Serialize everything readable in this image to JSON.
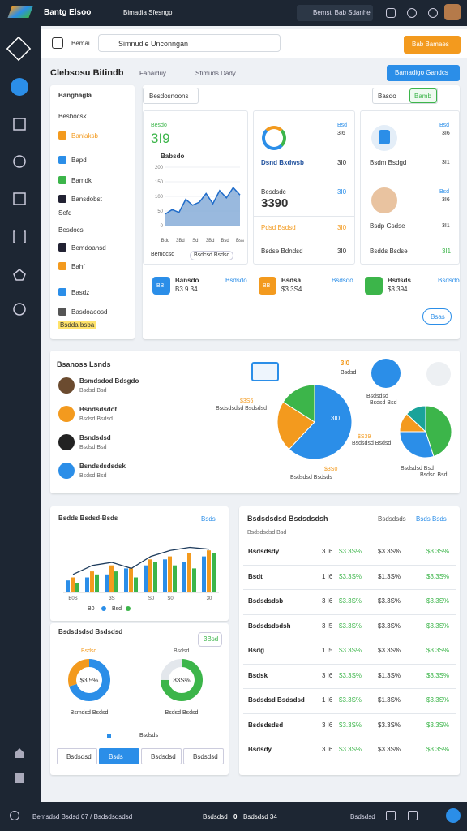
{
  "topbar": {
    "brand": "Bantg Elsoo",
    "tab": "Bimadia Sfesngp",
    "search": "Bemsti Bab Sdanhe"
  },
  "toolbar": {
    "home": "Bemai",
    "search": "Simnudie Unconngan",
    "button": "Bab Bamaes"
  },
  "header": {
    "title": "Clebsosu Bitindb",
    "tabs": [
      "Fanaiduy",
      "Sfimuds Dady"
    ],
    "button": "Bamadigo Gandcs"
  },
  "menu": {
    "title": "Banghagla",
    "items": [
      "Besbocsk",
      "Banlaksb",
      "Bapd",
      "Bamdk",
      "Bansdobst",
      "Sefd",
      "Besdocs",
      "Bemdoahsd",
      "Bahf",
      "Basdz",
      "Basdoaoosd",
      "Bsdda bsba"
    ]
  },
  "overview": {
    "button": "Besdosnoons",
    "toggle": [
      "Basdo",
      "Bamb"
    ],
    "card1": {
      "value": "3I9",
      "sub": "Besdo",
      "label": "Babsdo",
      "footer": "Bemdcsd",
      "legend": "Bsdcsd Bsdsd"
    },
    "area_chart": {
      "values": [
        40,
        55,
        45,
        90,
        70,
        80,
        110,
        75,
        120,
        95,
        130,
        105
      ],
      "ylim": [
        0,
        200
      ],
      "yticks": [
        0,
        50,
        100,
        150,
        200
      ],
      "xlabels": [
        "Bdd",
        "3Bd",
        "Sd",
        "3Bd",
        "Bsd",
        "Bss"
      ]
    },
    "card2": {
      "tag": "Bsd",
      "tag_value": "3I6",
      "rows": [
        {
          "label": "Dsnd Bxdwsb",
          "value": "3I0"
        },
        {
          "label": "Besdsdc",
          "value": "3I0"
        },
        {
          "label": "Pdsd Bsdsd",
          "value": "3I0"
        },
        {
          "label": "Bsdse Bdndsd",
          "value": "3I0"
        }
      ],
      "big": "3390"
    },
    "card3": {
      "rows": [
        {
          "label": "Bsd",
          "value": "3I6"
        },
        {
          "label": "Bsdm Bsdgd",
          "value": "3I1"
        },
        {
          "label": "Bsd",
          "value": "3I6"
        },
        {
          "label": "Bsdp Gsdse",
          "value": "3I1"
        },
        {
          "label": "Bsdds Bsdse",
          "value": "3I1"
        }
      ]
    },
    "stats": [
      {
        "icon": "BB",
        "label": "Bansdo",
        "value": "B3.9 34",
        "link": "Bsdsdo"
      },
      {
        "icon": "BB",
        "label": "Bsdsa",
        "value": "$3.3S4",
        "link": "Bsdsdo"
      },
      {
        "icon": "",
        "label": "Bsdsds",
        "value": "$3.394",
        "link": "Bsdsdo"
      }
    ],
    "more": "Bsas"
  },
  "trends": {
    "title": "Bsanoss Lsnds",
    "people": [
      {
        "name": "Bsmdsdod Bdsgdo",
        "sub": "Bsdsd Bsd"
      },
      {
        "name": "Bsndsdsdot",
        "sub": "Bsdsd Bsdsd"
      },
      {
        "name": "Bsndsdsd",
        "sub": "Bsdsd Bsd"
      },
      {
        "name": "Bsndsdsdsdsk",
        "sub": "Bsdsd Bsd"
      }
    ],
    "badge": "3I0",
    "badge_sub": "Bsdsd",
    "pie1": {
      "values": [
        62,
        22,
        16
      ],
      "colors": [
        "#2b8ee8",
        "#f39a1e",
        "#3cb54a"
      ],
      "label": "3I0",
      "annotations": [
        "$3S6",
        "Bsdsdsdsd Bsdsdsd",
        "$S39",
        "Bsdsdsd Bsdsd",
        "$3S0",
        "Bsdsdsd Bsdsds"
      ]
    },
    "pie2": {
      "values": [
        45,
        30,
        12,
        13
      ],
      "colors": [
        "#3cb54a",
        "#2b8ee8",
        "#f39a1e",
        "#1aa39a"
      ],
      "annotations": [
        "Bsdsdsd",
        "Bsdsd Bsd",
        "Bsdsdsd Bsd",
        "Bsdsd Bsd"
      ]
    }
  },
  "bars": {
    "title": "Bsdds Bsdsd-Bsds",
    "link": "Bsds",
    "categories": [
      "B0S",
      null,
      "3S",
      null,
      "'S0",
      "S0",
      null,
      "30"
    ],
    "ylim": [
      0,
      100
    ],
    "series": [
      {
        "color": "#2b8ee8",
        "values": [
          20,
          25,
          30,
          40,
          45,
          55,
          50,
          60
        ]
      },
      {
        "color": "#f39a1e",
        "values": [
          25,
          35,
          45,
          40,
          55,
          60,
          65,
          70
        ]
      },
      {
        "color": "#3cb54a",
        "values": [
          15,
          30,
          35,
          25,
          50,
          45,
          40,
          65
        ]
      }
    ],
    "line": {
      "color": "#1d3b5c",
      "values": [
        30,
        45,
        50,
        40,
        60,
        70,
        75,
        72
      ]
    },
    "legend": [
      "B0",
      "Bsd"
    ]
  },
  "donuts": {
    "title": "Bsdsdsdsd Bsdsdsd",
    "button": "3Bsd",
    "items": [
      {
        "values": [
          70,
          30
        ],
        "colors": [
          "#2b8ee8",
          "#f39a1e"
        ],
        "label": "$3I5%",
        "caption": "Bsmdsd Bsdsd",
        "top": "Bsdsd"
      },
      {
        "values": [
          75,
          25
        ],
        "colors": [
          "#3cb54a",
          "#e3e7ec"
        ],
        "label": "83S%",
        "caption": "Bsdsd Bsdsd",
        "top": "Bsdsd"
      }
    ],
    "legend": "Bsdsds",
    "tabs": [
      "Bsdsdsd",
      "Bsds",
      "Bsdsdsd",
      "Bsdsdsd"
    ]
  },
  "table": {
    "title": "Bsdsdsdsd Bsdsdsdsh",
    "filter": "Bsdsdsds",
    "link": "Bsds Bsds",
    "subtitle": "Bsdsdsdsd Bsd",
    "rows": [
      [
        "Bsdsdsdy",
        "3 I6",
        "$3.3S%",
        "$3.3S%",
        "$3.3S%"
      ],
      [
        "Bsdt",
        "1 I6",
        "$3.3S%",
        "$1.3S%",
        "$3.3S%"
      ],
      [
        "Bsdsdsdsb",
        "3 I6",
        "$3.3S%",
        "$3.3S%",
        "$3.3S%"
      ],
      [
        "Bsdsdsdsdsh",
        "3 I5",
        "$3.3S%",
        "$3.3S%",
        "$3.3S%"
      ],
      [
        "Bsdg",
        "1 I5",
        "$3.3S%",
        "$3.3S%",
        "$3.3S%"
      ],
      [
        "Bsdsk",
        "3 I6",
        "$3.3S%",
        "$1.3S%",
        "$3.3S%"
      ],
      [
        "Bsdsdsd Bsdsdsd",
        "1 I6",
        "$3.3S%",
        "$1.3S%",
        "$3.3S%"
      ],
      [
        "Bsdsdsdsd",
        "3 I6",
        "$3.3S%",
        "$3.3S%",
        "$3.3S%"
      ],
      [
        "Bsdsdy",
        "3 I6",
        "$3.3S%",
        "$3.3S%",
        "$3.3S%"
      ]
    ]
  },
  "footer": {
    "left": "Bemsdsd Bsdsd 07 / Bsdsdsdsdsd",
    "center": [
      "Bsdsdsd",
      "0",
      "Bsdsdsd 34"
    ],
    "right": "Bsdsdsd"
  }
}
